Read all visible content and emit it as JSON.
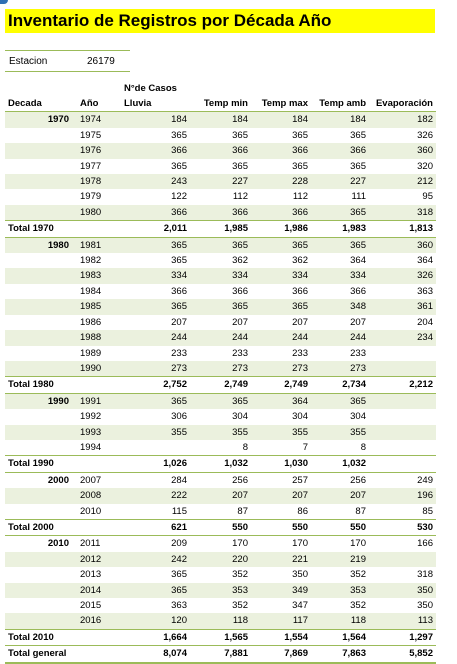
{
  "title": "Inventario de Registros por Década Año",
  "station": {
    "label": "Estacion",
    "value": "26179"
  },
  "header_top": "N°de Casos",
  "columns": [
    "Decada",
    "Año",
    "Lluvia",
    "Temp min",
    "Temp max",
    "Temp amb",
    "Evaporación"
  ],
  "colors": {
    "title_bg": "#ffff00",
    "band": "#ebf1de",
    "rule": "#9bbb59"
  },
  "groups": [
    {
      "decade": "1970",
      "total_label": "Total 1970",
      "rows": [
        [
          "1974",
          "184",
          "184",
          "184",
          "184",
          "182"
        ],
        [
          "1975",
          "365",
          "365",
          "365",
          "365",
          "326"
        ],
        [
          "1976",
          "366",
          "366",
          "366",
          "366",
          "360"
        ],
        [
          "1977",
          "365",
          "365",
          "365",
          "365",
          "320"
        ],
        [
          "1978",
          "243",
          "227",
          "228",
          "227",
          "212"
        ],
        [
          "1979",
          "122",
          "112",
          "112",
          "111",
          "95"
        ],
        [
          "1980",
          "366",
          "366",
          "366",
          "365",
          "318"
        ]
      ],
      "total": [
        "2,011",
        "1,985",
        "1,986",
        "1,983",
        "1,813"
      ]
    },
    {
      "decade": "1980",
      "total_label": "Total 1980",
      "rows": [
        [
          "1981",
          "365",
          "365",
          "365",
          "365",
          "360"
        ],
        [
          "1982",
          "365",
          "362",
          "362",
          "364",
          "364"
        ],
        [
          "1983",
          "334",
          "334",
          "334",
          "334",
          "326"
        ],
        [
          "1984",
          "366",
          "366",
          "366",
          "366",
          "363"
        ],
        [
          "1985",
          "365",
          "365",
          "365",
          "348",
          "361"
        ],
        [
          "1986",
          "207",
          "207",
          "207",
          "207",
          "204"
        ],
        [
          "1988",
          "244",
          "244",
          "244",
          "244",
          "234"
        ],
        [
          "1989",
          "233",
          "233",
          "233",
          "233",
          ""
        ],
        [
          "1990",
          "273",
          "273",
          "273",
          "273",
          ""
        ]
      ],
      "total": [
        "2,752",
        "2,749",
        "2,749",
        "2,734",
        "2,212"
      ]
    },
    {
      "decade": "1990",
      "total_label": "Total 1990",
      "rows": [
        [
          "1991",
          "365",
          "365",
          "364",
          "365",
          ""
        ],
        [
          "1992",
          "306",
          "304",
          "304",
          "304",
          ""
        ],
        [
          "1993",
          "355",
          "355",
          "355",
          "355",
          ""
        ],
        [
          "1994",
          "",
          "8",
          "7",
          "8",
          ""
        ]
      ],
      "total": [
        "1,026",
        "1,032",
        "1,030",
        "1,032",
        ""
      ]
    },
    {
      "decade": "2000",
      "total_label": "Total 2000",
      "rows": [
        [
          "2007",
          "284",
          "256",
          "257",
          "256",
          "249"
        ],
        [
          "2008",
          "222",
          "207",
          "207",
          "207",
          "196"
        ],
        [
          "2010",
          "115",
          "87",
          "86",
          "87",
          "85"
        ]
      ],
      "total": [
        "621",
        "550",
        "550",
        "550",
        "530"
      ]
    },
    {
      "decade": "2010",
      "total_label": "Total 2010",
      "rows": [
        [
          "2011",
          "209",
          "170",
          "170",
          "170",
          "166"
        ],
        [
          "2012",
          "242",
          "220",
          "221",
          "219",
          ""
        ],
        [
          "2013",
          "365",
          "352",
          "350",
          "352",
          "318"
        ],
        [
          "2014",
          "365",
          "353",
          "349",
          "353",
          "350"
        ],
        [
          "2015",
          "363",
          "352",
          "347",
          "352",
          "350"
        ],
        [
          "2016",
          "120",
          "118",
          "117",
          "118",
          "113"
        ]
      ],
      "total": [
        "1,664",
        "1,565",
        "1,554",
        "1,564",
        "1,297"
      ]
    }
  ],
  "grand_total": {
    "label": "Total general",
    "values": [
      "8,074",
      "7,881",
      "7,869",
      "7,863",
      "5,852"
    ]
  }
}
